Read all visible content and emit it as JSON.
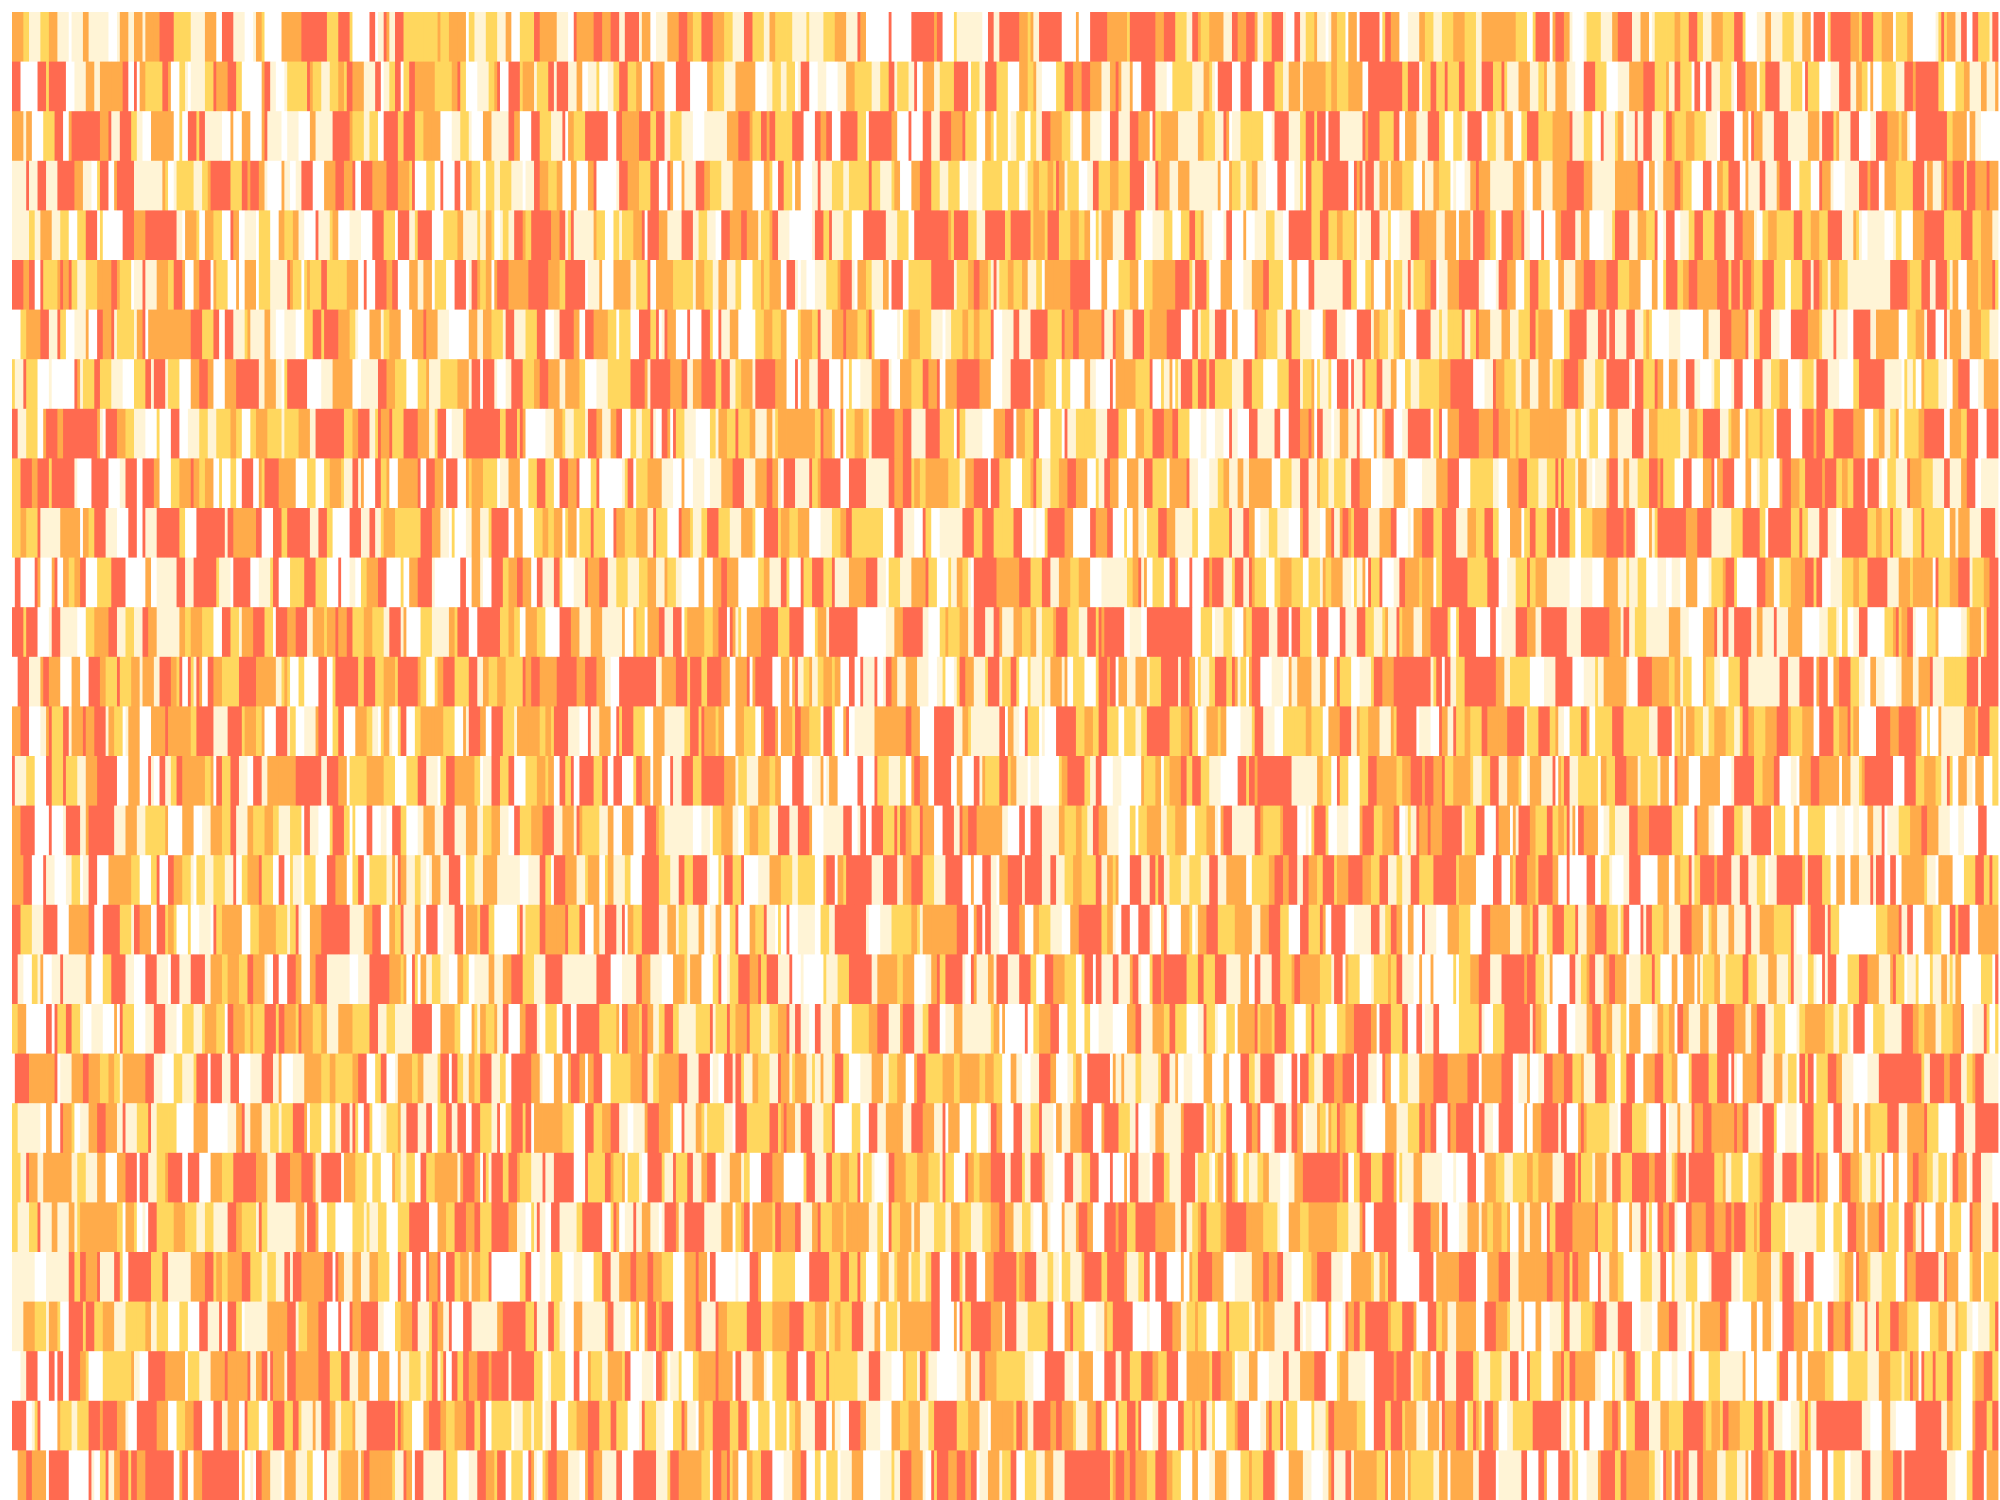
{
  "chart_data": {
    "type": "heatmap",
    "title": "",
    "xlabel": "",
    "ylabel": "",
    "rows": 30,
    "columns": 700,
    "value_range": [
      0,
      4
    ],
    "color_scale": [
      "#ffffff",
      "#fff4d6",
      "#ffd75e",
      "#ffab4a",
      "#ff6a50"
    ],
    "grid": false,
    "legend": "none",
    "axes_visible": false,
    "row_levels": [
      [
        0,
        1,
        4,
        3,
        2,
        4,
        1,
        0,
        3,
        4,
        2,
        2,
        4,
        3,
        1,
        0,
        4,
        4,
        3,
        2,
        0,
        1,
        3,
        4,
        2,
        3,
        4,
        1,
        0,
        2,
        4,
        3,
        3,
        1,
        0,
        4,
        2,
        4,
        3,
        1,
        2,
        4,
        0,
        3,
        4,
        2,
        1,
        3,
        4,
        0,
        3,
        2,
        4,
        4,
        1,
        0,
        2,
        3,
        4,
        3,
        1,
        2,
        4,
        0,
        1,
        3,
        4,
        2,
        3,
        4,
        0,
        1,
        4,
        2,
        3,
        3,
        0,
        4,
        1,
        2,
        4,
        3,
        0,
        2,
        4,
        1,
        3,
        4,
        2,
        0,
        3,
        4,
        1,
        2,
        4,
        3,
        0,
        1,
        4,
        3
      ],
      [
        4,
        3,
        0,
        1,
        2,
        4,
        3,
        4,
        0,
        2,
        1,
        4,
        3,
        2,
        0,
        4,
        4,
        1,
        3,
        2,
        0,
        4,
        3,
        1,
        2,
        4,
        0,
        3,
        4,
        2,
        1,
        0,
        4,
        3,
        2,
        4,
        1,
        0,
        3,
        4,
        2,
        3,
        1,
        4,
        0,
        2,
        4,
        3,
        1,
        2,
        4,
        0,
        3,
        4,
        2,
        1,
        4,
        3,
        0,
        2,
        4,
        1,
        3,
        0,
        4,
        2,
        3,
        4,
        1,
        0,
        2,
        4,
        3,
        1,
        4,
        2,
        0,
        3,
        4,
        1,
        2,
        3,
        4,
        0,
        1,
        4,
        2,
        3,
        0,
        4,
        3,
        1,
        2,
        4,
        0,
        3,
        4,
        2,
        1,
        4
      ],
      [
        2,
        4,
        3,
        0,
        1,
        3,
        4,
        2,
        4,
        0,
        3,
        1,
        2,
        4,
        3,
        0,
        4,
        2,
        1,
        3,
        4,
        0,
        2,
        4,
        3,
        1,
        0,
        4,
        2,
        3,
        4,
        1,
        0,
        3,
        2,
        4,
        4,
        0,
        1,
        3,
        2,
        4,
        3,
        0,
        1,
        4,
        2,
        3,
        4,
        0,
        2,
        1,
        4,
        3,
        0,
        4,
        2,
        3,
        1,
        4,
        0,
        2,
        3,
        4,
        1,
        0,
        4,
        3,
        2,
        1,
        4,
        0,
        3,
        2,
        4,
        1,
        3,
        0,
        4,
        2,
        3,
        4,
        1,
        0,
        2,
        4,
        3,
        1,
        0,
        4,
        2,
        3,
        4,
        0,
        1,
        3,
        2,
        4,
        0,
        3
      ]
    ]
  }
}
